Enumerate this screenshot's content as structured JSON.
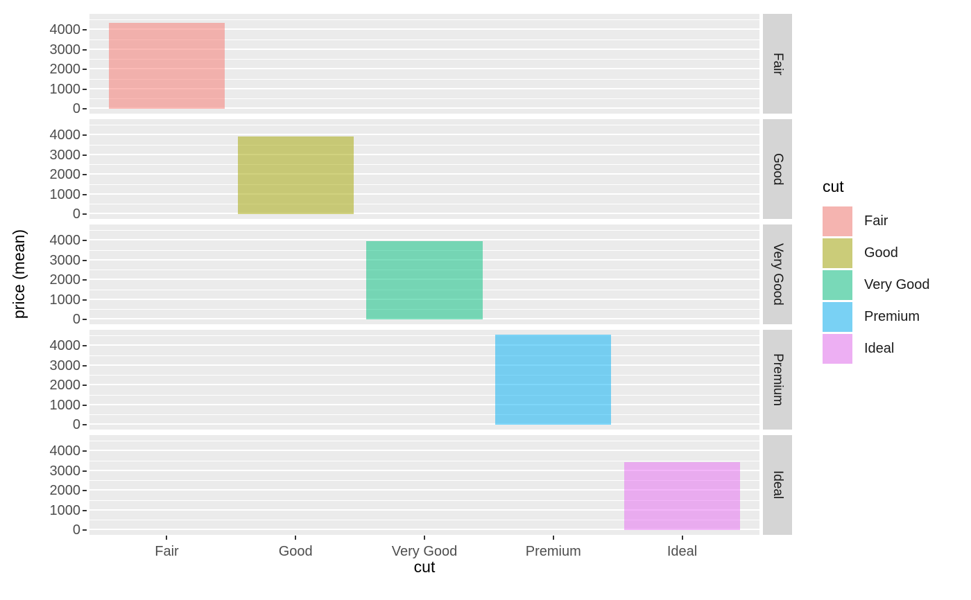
{
  "chart_data": {
    "type": "bar",
    "title": "",
    "xlabel": "cut",
    "ylabel": "price (mean)",
    "categories": [
      "Fair",
      "Good",
      "Very Good",
      "Premium",
      "Ideal"
    ],
    "values": [
      4358.76,
      3928.86,
      3981.76,
      4584.26,
      3457.54
    ],
    "facets": [
      "Fair",
      "Good",
      "Very Good",
      "Premium",
      "Ideal"
    ],
    "facet_strip_side": "right",
    "y_ticks": [
      0,
      1000,
      2000,
      3000,
      4000
    ],
    "y_minor_ticks": [
      500,
      1500,
      2500,
      3500,
      4500
    ],
    "ylim": [
      -229,
      4813
    ],
    "bar_alpha": 0.5,
    "bar_width_fraction": 0.9,
    "colors": {
      "Fair": "#F8766D",
      "Good": "#A3A500",
      "Very Good": "#00BF7D",
      "Premium": "#00B0F6",
      "Ideal": "#E76BF3"
    },
    "grid": "major+minor",
    "legend_position": "right"
  },
  "legend": {
    "title": "cut",
    "items": [
      {
        "label": "Fair",
        "color": "#F8766D"
      },
      {
        "label": "Good",
        "color": "#A3A500"
      },
      {
        "label": "Very Good",
        "color": "#00BF7D"
      },
      {
        "label": "Premium",
        "color": "#00B0F6"
      },
      {
        "label": "Ideal",
        "color": "#E76BF3"
      }
    ]
  },
  "theme": {
    "panel_bg": "#EBEBEB",
    "strip_bg": "#D5D5D5",
    "grid_color": "#FFFFFF",
    "tick_label_color": "#4D4D4D",
    "strip_text_color": "#1A1A1A",
    "axis_title_color": "#000000",
    "legend_key_bg": "#F2F2F2"
  }
}
